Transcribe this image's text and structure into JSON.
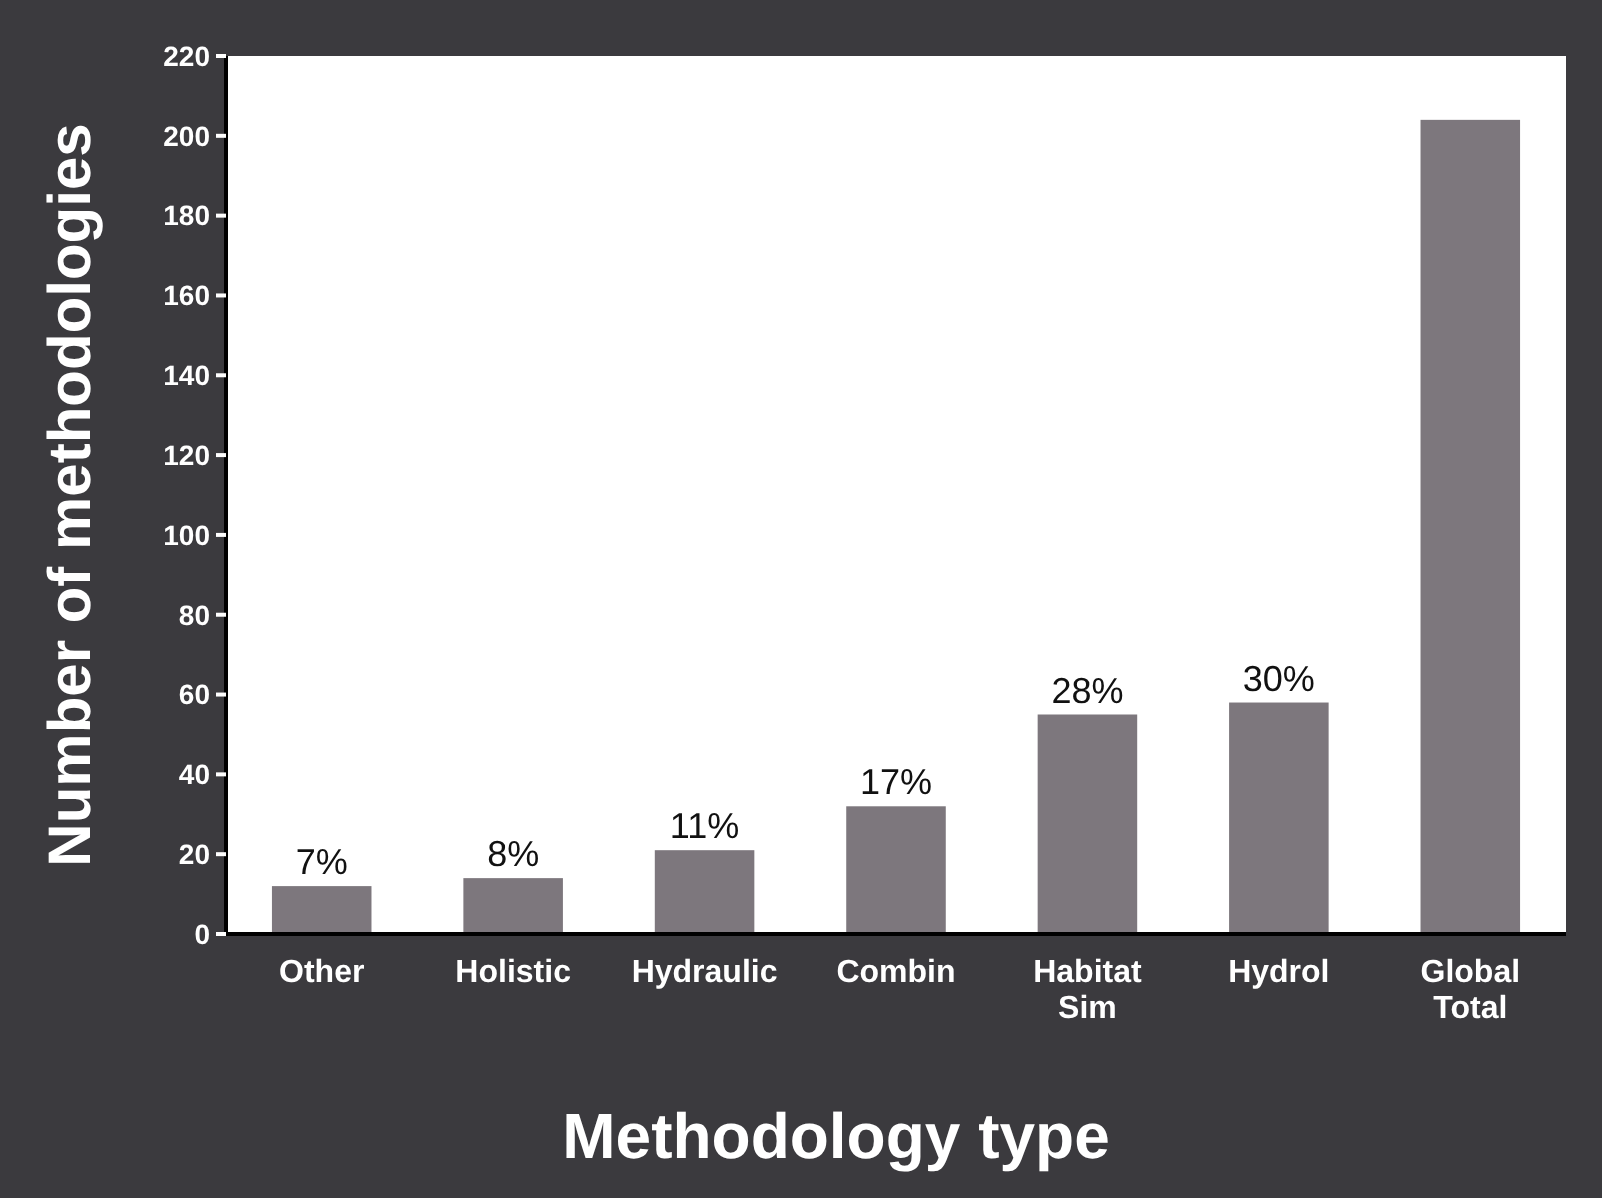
{
  "chart_data": {
    "type": "bar",
    "xlabel": "Methodology type",
    "ylabel": "Number of methodologies",
    "categories": [
      "Other",
      "Holistic",
      "Hydraulic",
      "Combin",
      "Habitat Sim",
      "Hydrol",
      "Global Total"
    ],
    "values": [
      12,
      14,
      21,
      32,
      55,
      58,
      204
    ],
    "annotations": [
      {
        "text": "7%",
        "x": "Other",
        "y": 12
      },
      {
        "text": "8%",
        "x": "Holistic",
        "y": 14
      },
      {
        "text": "11%",
        "x": "Hydraulic",
        "y": 21
      },
      {
        "text": "17%",
        "x": "Combin",
        "y": 32
      },
      {
        "text": "28%",
        "x": "Habitat Sim",
        "y": 55
      },
      {
        "text": "30%",
        "x": "Hydrol",
        "y": 58
      }
    ],
    "color": "#7d777d",
    "ylim": [
      0,
      220
    ],
    "yticks": [
      0,
      20,
      40,
      60,
      80,
      100,
      120,
      140,
      160,
      180,
      200,
      220
    ],
    "grid": false
  }
}
